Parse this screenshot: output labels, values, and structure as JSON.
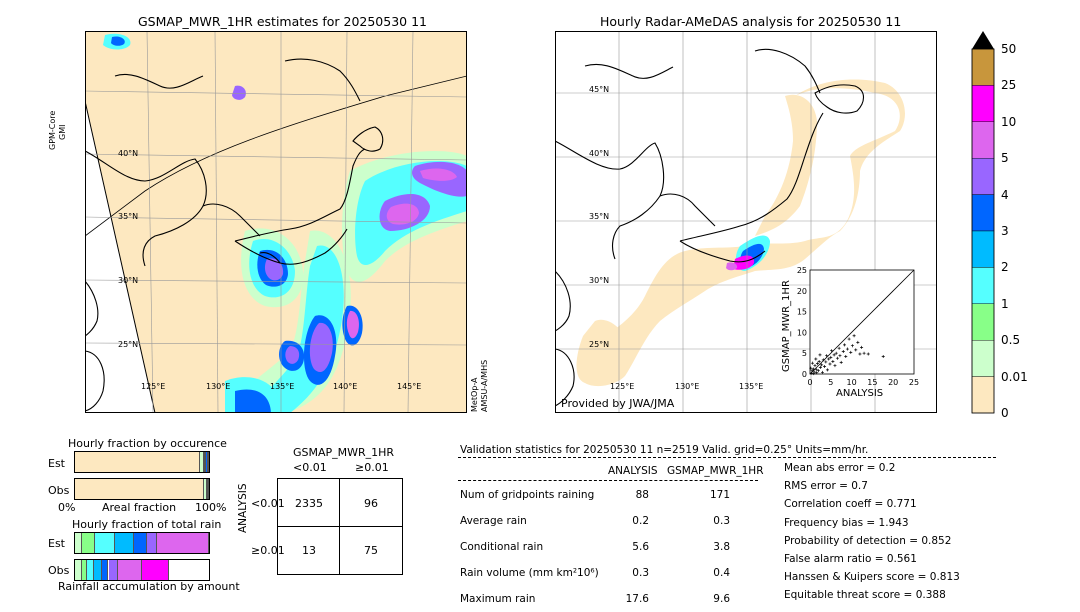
{
  "left_map": {
    "title": "GSMAP_MWR_1HR estimates for 20250530 11",
    "lat_labels": [
      "40°N",
      "35°N",
      "30°N",
      "25°N"
    ],
    "lon_labels": [
      "125°E",
      "130°E",
      "135°E",
      "140°E",
      "145°E"
    ],
    "sat_left": [
      "GPM-Core",
      "GMI"
    ],
    "sat_right": [
      "MetOp-A",
      "AMSU-A/MHS"
    ]
  },
  "right_map": {
    "title": "Hourly Radar-AMeDAS analysis for 20250530 11",
    "lat_labels": [
      "45°N",
      "40°N",
      "35°N",
      "30°N",
      "25°N"
    ],
    "lon_labels": [
      "125°E",
      "130°E",
      "135°E"
    ],
    "credit": "Provided by JWA/JMA"
  },
  "colorbar": {
    "labels": [
      "50",
      "25",
      "10",
      "5",
      "4",
      "3",
      "2",
      "1",
      "0.5",
      "0.01",
      "0"
    ],
    "colors": [
      "#c8963c",
      "#ff00ff",
      "#dd66ee",
      "#9966ff",
      "#0066ff",
      "#00bbff",
      "#55ffff",
      "#88ff88",
      "#ccffcc",
      "#fde8c0"
    ]
  },
  "scatter": {
    "ylabel": "GSMAP_MWR_1HR",
    "xlabel": "ANALYSIS",
    "ticks": [
      "0",
      "5",
      "10",
      "15",
      "20",
      "25"
    ],
    "range": [
      0,
      25
    ],
    "points": [
      [
        0.3,
        0.2
      ],
      [
        0.5,
        0.8
      ],
      [
        0.8,
        1.2
      ],
      [
        1.0,
        0.5
      ],
      [
        1.2,
        2.0
      ],
      [
        1.5,
        1.1
      ],
      [
        1.8,
        2.5
      ],
      [
        2.0,
        0.8
      ],
      [
        2.2,
        3.0
      ],
      [
        2.5,
        1.6
      ],
      [
        2.8,
        2.2
      ],
      [
        3.0,
        0.4
      ],
      [
        3.2,
        3.4
      ],
      [
        3.5,
        1.8
      ],
      [
        3.8,
        2.9
      ],
      [
        4.0,
        4.4
      ],
      [
        4.2,
        1.0
      ],
      [
        4.5,
        3.6
      ],
      [
        4.8,
        2.4
      ],
      [
        5.0,
        4.0
      ],
      [
        5.2,
        5.6
      ],
      [
        5.5,
        3.0
      ],
      [
        5.8,
        4.6
      ],
      [
        6.0,
        2.0
      ],
      [
        6.3,
        5.0
      ],
      [
        6.6,
        3.8
      ],
      [
        7.0,
        6.2
      ],
      [
        7.2,
        4.4
      ],
      [
        7.5,
        2.8
      ],
      [
        8.0,
        5.4
      ],
      [
        8.3,
        7.0
      ],
      [
        8.6,
        4.2
      ],
      [
        9.0,
        6.0
      ],
      [
        9.4,
        8.4
      ],
      [
        9.8,
        5.2
      ],
      [
        10.2,
        6.8
      ],
      [
        10.6,
        9.2
      ],
      [
        11.0,
        5.8
      ],
      [
        11.5,
        7.6
      ],
      [
        12.0,
        4.8
      ],
      [
        12.4,
        6.4
      ],
      [
        13.0,
        5.0
      ],
      [
        14.0,
        4.8
      ],
      [
        17.6,
        4.2
      ],
      [
        0.2,
        1.4
      ],
      [
        0.6,
        2.6
      ],
      [
        1.4,
        3.6
      ],
      [
        2.4,
        4.6
      ],
      [
        0.9,
        0.1
      ],
      [
        1.6,
        0.3
      ]
    ]
  },
  "occurrence": {
    "title": "Hourly fraction by occurence",
    "rows": [
      "Est",
      "Obs"
    ],
    "xlabel_left": "0%",
    "xlabel_mid": "Areal fraction",
    "xlabel_right": "100%",
    "est_fractions": [
      0.93,
      0.03,
      0.01,
      0.01,
      0.01,
      0.01
    ],
    "obs_fractions": [
      0.964,
      0.02,
      0.008,
      0.004,
      0.004
    ],
    "est_colors": [
      "#fde8c0",
      "#ccffcc",
      "#88ff88",
      "#55ffff",
      "#0066ff",
      "#9966ff"
    ],
    "obs_colors": [
      "#fde8c0",
      "#ccffcc",
      "#88ff88",
      "#55ffff",
      "#0066ff"
    ]
  },
  "total_rain": {
    "title": "Hourly fraction of total rain",
    "rows": [
      "Est",
      "Obs"
    ],
    "footer": "Rainfall accumulation by amount",
    "est_fractions": [
      0.05,
      0.1,
      0.15,
      0.14,
      0.1,
      0.07,
      0.39
    ],
    "obs_fractions": [
      0.05,
      0.04,
      0.05,
      0.06,
      0.05,
      0.07,
      0.18,
      0.2
    ],
    "est_colors": [
      "#ccffcc",
      "#88ff88",
      "#55ffff",
      "#00bbff",
      "#0066ff",
      "#9966ff",
      "#dd66ee"
    ],
    "obs_colors": [
      "#ccffcc",
      "#88ff88",
      "#55ffff",
      "#00bbff",
      "#0066ff",
      "#9966ff",
      "#dd66ee",
      "#ff00ff"
    ]
  },
  "contingency": {
    "title": "GSMAP_MWR_1HR",
    "col_labels": [
      "<0.01",
      "≥0.01"
    ],
    "row_axis": "ANALYSIS",
    "row_labels": [
      "<0.01",
      "≥0.01"
    ],
    "cells": [
      [
        "2335",
        "96"
      ],
      [
        "13",
        "75"
      ]
    ]
  },
  "validation": {
    "header": "Validation statistics for 20250530 11  n=2519 Valid. grid=0.25° Units=mm/hr.",
    "col_analysis": "ANALYSIS",
    "col_gsmap": "GSMAP_MWR_1HR",
    "rows": [
      {
        "label": "Num of gridpoints raining",
        "analysis": "88",
        "gsmap": "171"
      },
      {
        "label": "Average rain",
        "analysis": "0.2",
        "gsmap": "0.3"
      },
      {
        "label": "Conditional rain",
        "analysis": "5.6",
        "gsmap": "3.8"
      },
      {
        "label": "Rain volume (mm km²10⁶)",
        "analysis": "0.3",
        "gsmap": "0.4"
      },
      {
        "label": "Maximum rain",
        "analysis": "17.6",
        "gsmap": "9.6"
      }
    ],
    "scores": [
      "Mean abs error =    0.2",
      "RMS error =    0.7",
      "Correlation coeff =  0.771",
      "Frequency bias =  1.943",
      "Probability of detection =  0.852",
      "False alarm ratio =  0.561",
      "Hanssen & Kuipers score =  0.813",
      "Equitable threat score =  0.388"
    ]
  }
}
